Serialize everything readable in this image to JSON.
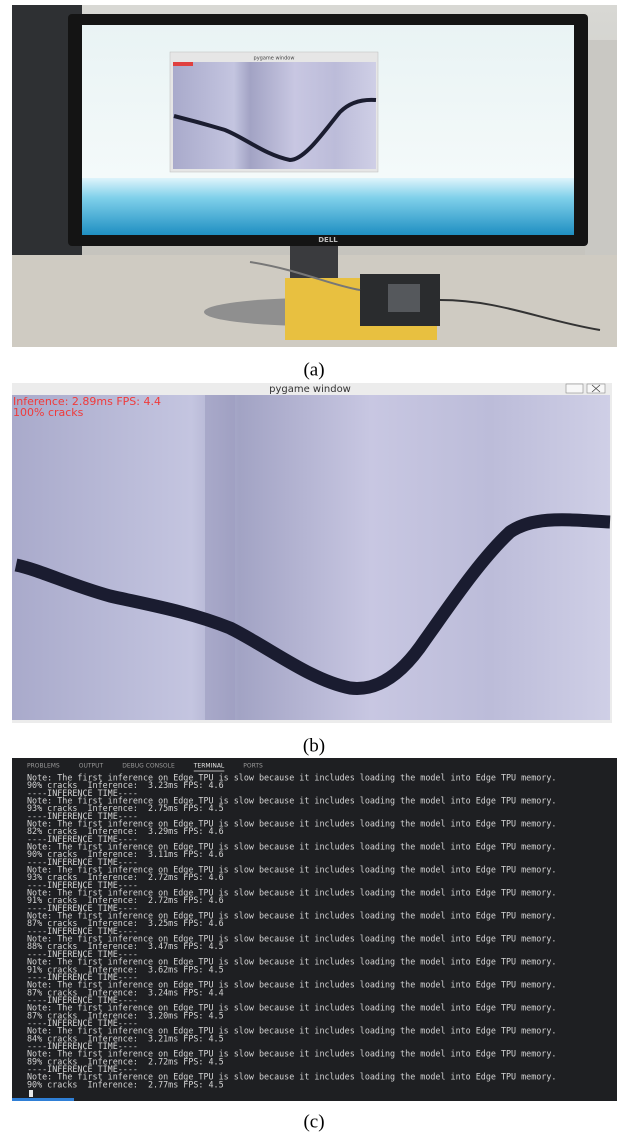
{
  "panels": [
    {
      "caption": "(a)",
      "screen_window_title": "pygame window",
      "monitor_brand": "DELL"
    },
    {
      "caption": "(b)",
      "window_title": "pygame window",
      "overlay": [
        "Inference: 2.89ms FPS: 4.4",
        "100% cracks"
      ]
    },
    {
      "caption": "(c)",
      "tabs": [
        "PROBLEMS",
        "OUTPUT",
        "DEBUG CONSOLE",
        "TERMINAL",
        "PORTS"
      ],
      "active_tab": 3,
      "terminal_lines": [
        "Note: The first inference on Edge TPU is slow because it includes loading the model into Edge TPU memory.",
        "90% cracks  Inference:  3.23ms FPS: 4.6",
        "----INFERENCE TIME----",
        "Note: The first inference on Edge TPU is slow because it includes loading the model into Edge TPU memory.",
        "93% cracks  Inference:  2.75ms FPS: 4.5",
        "----INFERENCE TIME----",
        "Note: The first inference on Edge TPU is slow because it includes loading the model into Edge TPU memory.",
        "82% cracks  Inference:  3.29ms FPS: 4.6",
        "----INFERENCE TIME----",
        "Note: The first inference on Edge TPU is slow because it includes loading the model into Edge TPU memory.",
        "90% cracks  Inference:  3.11ms FPS: 4.6",
        "----INFERENCE TIME----",
        "Note: The first inference on Edge TPU is slow because it includes loading the model into Edge TPU memory.",
        "93% cracks  Inference:  2.72ms FPS: 4.6",
        "----INFERENCE TIME----",
        "Note: The first inference on Edge TPU is slow because it includes loading the model into Edge TPU memory.",
        "91% cracks  Inference:  2.72ms FPS: 4.6",
        "----INFERENCE TIME----",
        "Note: The first inference on Edge TPU is slow because it includes loading the model into Edge TPU memory.",
        "87% cracks  Inference:  3.25ms FPS: 4.6",
        "----INFERENCE TIME----",
        "Note: The first inference on Edge TPU is slow because it includes loading the model into Edge TPU memory.",
        "88% cracks  Inference:  3.47ms FPS: 4.5",
        "----INFERENCE TIME----",
        "Note: The first inference on Edge TPU is slow because it includes loading the model into Edge TPU memory.",
        "91% cracks  Inference:  3.62ms FPS: 4.5",
        "----INFERENCE TIME----",
        "Note: The first inference on Edge TPU is slow because it includes loading the model into Edge TPU memory.",
        "87% cracks  Inference:  3.24ms FPS: 4.4",
        "----INFERENCE TIME----",
        "Note: The first inference on Edge TPU is slow because it includes loading the model into Edge TPU memory.",
        "87% cracks  Inference:  3.20ms FPS: 4.5",
        "----INFERENCE TIME----",
        "Note: The first inference on Edge TPU is slow because it includes loading the model into Edge TPU memory.",
        "84% cracks  Inference:  3.21ms FPS: 4.5",
        "----INFERENCE TIME----",
        "Note: The first inference on Edge TPU is slow because it includes loading the model into Edge TPU memory.",
        "89% cracks  Inference:  2.72ms FPS: 4.5",
        "----INFERENCE TIME----",
        "Note: The first inference on Edge TPU is slow because it includes loading the model into Edge TPU memory.",
        "90% cracks  Inference:  2.77ms FPS: 4.5"
      ]
    }
  ]
}
